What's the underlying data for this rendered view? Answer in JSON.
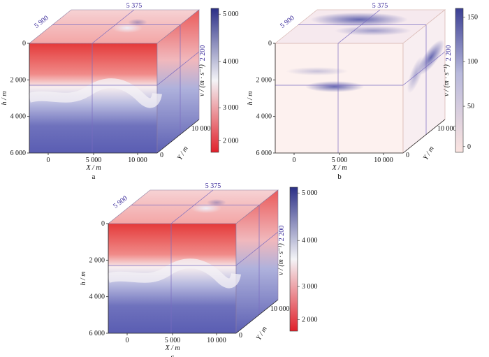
{
  "panels": [
    {
      "id": "a",
      "caption": "a",
      "slice_x": "5 375",
      "slice_y": "5 900",
      "slice_h": "2 200",
      "h_ticks": [
        "0",
        "2 000",
        "4 000",
        "6 000"
      ],
      "x_ticks": [
        "0",
        "5 000",
        "10 000"
      ],
      "y_ticks": [
        "0",
        "10 000"
      ],
      "h_label": "h / m",
      "x_label": "X / m",
      "y_label": "Y / m",
      "colorbar_label": "v / (m · s⁻¹)",
      "colorbar_ticks": [
        "5 000",
        "4 000",
        "3 000",
        "2 000"
      ],
      "colorbar_colors": [
        "#2b2f86",
        "#f4f4f7",
        "#e0202a"
      ]
    },
    {
      "id": "b",
      "caption": "b",
      "slice_x": "5 375",
      "slice_y": "5 900",
      "slice_h": "2 200",
      "h_ticks": [
        "0",
        "2 000",
        "4 000",
        "6 000"
      ],
      "x_ticks": [
        "0",
        "5 000",
        "10 000"
      ],
      "y_ticks": [
        "0",
        "10 000"
      ],
      "h_label": "h / m",
      "x_label": "X / m",
      "y_label": "Y / m",
      "colorbar_label": "v / (m · s⁻¹)",
      "colorbar_ticks": [
        "150",
        "100",
        "50",
        "0"
      ],
      "colorbar_colors": [
        "#3b3f93",
        "#c9c9e2",
        "#fbe4e0"
      ]
    },
    {
      "id": "c",
      "caption": "c",
      "slice_x": "5 375",
      "slice_y": "5 900",
      "slice_h": "2 200",
      "h_ticks": [
        "0",
        "2 000",
        "4 000",
        "6 000"
      ],
      "x_ticks": [
        "0",
        "5 000",
        "10 000"
      ],
      "y_ticks": [
        "0",
        "10 000"
      ],
      "h_label": "h / m",
      "x_label": "X / m",
      "y_label": "Y / m",
      "colorbar_label": "v / (m · s⁻¹)",
      "colorbar_ticks": [
        "5 000",
        "4 000",
        "3 000",
        "2 000"
      ],
      "colorbar_colors": [
        "#2b2f86",
        "#f4f4f7",
        "#e0202a"
      ]
    }
  ]
}
